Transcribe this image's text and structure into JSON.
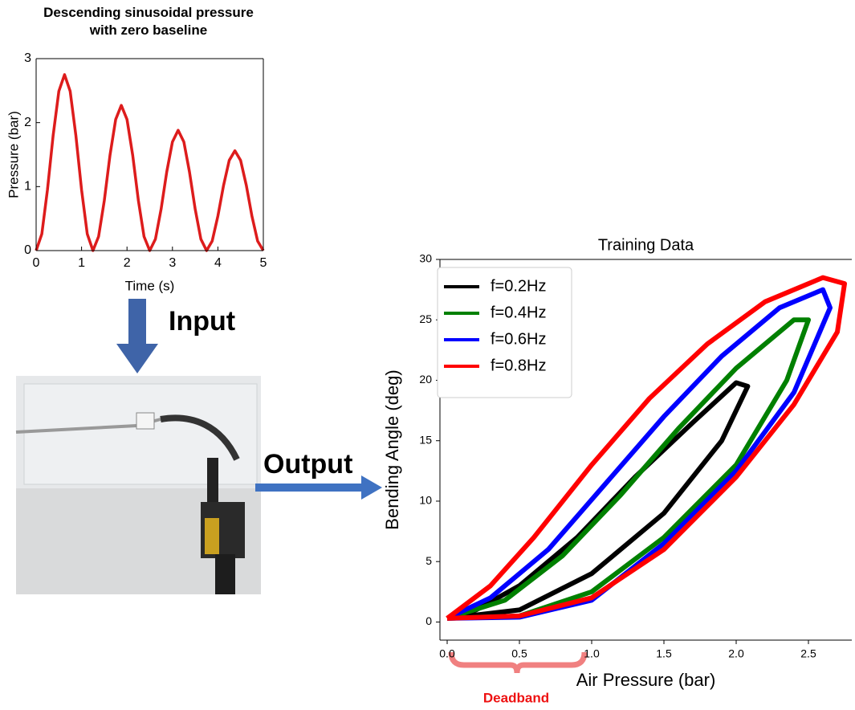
{
  "chart_data": [
    {
      "type": "line",
      "title": "Descending sinusoidal pressure with zero baseline",
      "x_label": "Time (s)",
      "y_label": "Pressure (bar)",
      "x": [
        0,
        0.125,
        0.25,
        0.375,
        0.5,
        0.625,
        0.75,
        0.875,
        1,
        1.125,
        1.25,
        1.375,
        1.5,
        1.625,
        1.75,
        1.875,
        2,
        2.125,
        2.25,
        2.375,
        2.5,
        2.625,
        2.75,
        2.875,
        3,
        3.125,
        3.25,
        3.375,
        3.5,
        3.625,
        3.75,
        3.875,
        4,
        4.125,
        4.25,
        4.375,
        4.5,
        4.625,
        4.75,
        4.875,
        5
      ],
      "values": [
        0,
        0.26,
        0.95,
        1.8,
        2.49,
        2.75,
        2.49,
        1.8,
        0.95,
        0.26,
        0,
        0.22,
        0.78,
        1.49,
        2.05,
        2.27,
        2.05,
        1.49,
        0.78,
        0.22,
        0,
        0.18,
        0.65,
        1.23,
        1.7,
        1.88,
        1.7,
        1.23,
        0.65,
        0.18,
        0,
        0.15,
        0.54,
        1.02,
        1.41,
        1.56,
        1.41,
        1.02,
        0.54,
        0.15,
        0
      ],
      "color": "#dd1c1c",
      "xlim": [
        0,
        5
      ],
      "xticks": [
        0,
        1,
        2,
        3,
        4,
        5
      ],
      "ylim": [
        0,
        3
      ],
      "yticks": [
        0,
        1,
        2,
        3
      ],
      "grid": false
    },
    {
      "type": "line",
      "title": "Training Data",
      "x_label": "Air Pressure (bar)",
      "y_label": "Bending Angle (deg)",
      "annotation": "Deadband",
      "series": [
        {
          "name": "f=0.2Hz",
          "color": "#000000",
          "x": [
            0,
            0.5,
            1.0,
            1.5,
            1.9,
            2.08,
            2.0,
            1.7,
            1.3,
            0.9,
            0.5,
            0.2,
            0
          ],
          "y": [
            0.3,
            1,
            4,
            9,
            15,
            19.5,
            19.8,
            16.5,
            12,
            7,
            3,
            1,
            0.3
          ]
        },
        {
          "name": "f=0.4Hz",
          "color": "#008000",
          "x": [
            0,
            0.5,
            1.0,
            1.5,
            2.0,
            2.35,
            2.5,
            2.4,
            2.0,
            1.6,
            1.2,
            0.8,
            0.4,
            0
          ],
          "y": [
            0.3,
            0.5,
            2.5,
            7,
            13,
            20,
            25,
            25,
            21,
            16,
            10.5,
            5.5,
            1.8,
            0.3
          ]
        },
        {
          "name": "f=0.6Hz",
          "color": "#0000ff",
          "x": [
            0,
            0.5,
            1.0,
            1.5,
            2.0,
            2.4,
            2.65,
            2.6,
            2.3,
            1.9,
            1.5,
            1.1,
            0.7,
            0.3,
            0
          ],
          "y": [
            0.3,
            0.4,
            1.8,
            6.5,
            12.5,
            19,
            26,
            27.5,
            26,
            22,
            17,
            11.5,
            6,
            2,
            0.3
          ]
        },
        {
          "name": "f=0.8Hz",
          "color": "#ff0000",
          "x": [
            0,
            0.5,
            1.0,
            1.5,
            2.0,
            2.4,
            2.7,
            2.75,
            2.6,
            2.2,
            1.8,
            1.4,
            1.0,
            0.6,
            0.3,
            0
          ],
          "y": [
            0.3,
            0.5,
            2,
            6,
            12,
            18,
            24,
            28,
            28.5,
            26.5,
            23,
            18.5,
            13,
            7,
            3,
            0.3
          ]
        }
      ],
      "xlim": [
        -0.05,
        2.8
      ],
      "xticks": [
        {
          "value": 0,
          "label": "0.0"
        },
        0.5,
        {
          "value": 1,
          "label": "1.0"
        },
        1.5,
        {
          "value": 2,
          "label": "2.0"
        },
        2.5
      ],
      "ylim": [
        -1.5,
        30
      ],
      "yticks": [
        0,
        5,
        10,
        15,
        20,
        25,
        30
      ],
      "legend": "upper-left",
      "grid": false
    }
  ],
  "diagram": {
    "input_label": "Input",
    "output_label": "Output"
  }
}
